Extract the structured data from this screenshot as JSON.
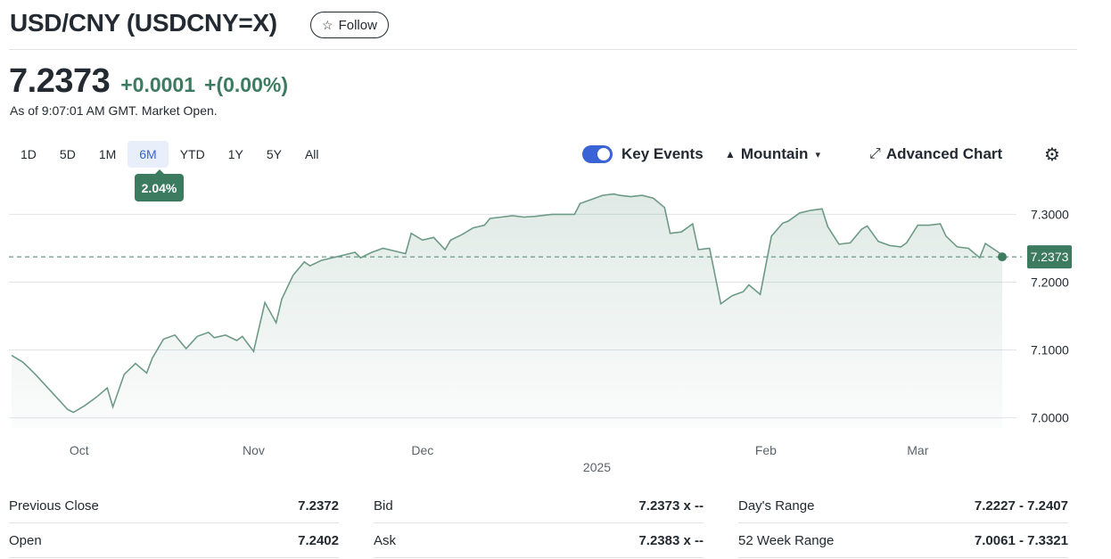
{
  "header": {
    "title": "USD/CNY (USDCNY=X)",
    "follow_label": "Follow"
  },
  "quote": {
    "price": "7.2373",
    "change": "+0.0001",
    "change_pct": "+(0.00%)",
    "as_of": "As of 9:07:01 AM GMT. Market Open."
  },
  "ranges": {
    "items": [
      "1D",
      "5D",
      "1M",
      "6M",
      "YTD",
      "1Y",
      "5Y",
      "All"
    ],
    "active": "6M",
    "badge": "2.04%"
  },
  "toolbar": {
    "key_events": "Key Events",
    "chart_type": "Mountain",
    "advanced": "Advanced Chart",
    "key_events_on": true
  },
  "colors": {
    "accent": "#3a63d6",
    "positive": "#3c7b60",
    "line": "#6d9a86",
    "grid": "#e0e4e9"
  },
  "chart_data": {
    "type": "area",
    "ylim": [
      6.985,
      7.34
    ],
    "y_ticks": [
      "7.0000",
      "7.1000",
      "7.2000",
      "7.3000"
    ],
    "y_tick_values": [
      7.0,
      7.1,
      7.2,
      7.3
    ],
    "x_labels": [
      "Oct",
      "Nov",
      "Dec",
      "Feb",
      "Mar"
    ],
    "x_label_days": [
      12,
      43,
      73,
      134,
      161
    ],
    "year_label": "2025",
    "year_label_day": 104,
    "last_price": 7.2373,
    "last_price_label": "7.2373",
    "days": [
      0,
      2,
      4,
      6,
      8,
      10,
      11,
      13,
      15,
      17,
      18,
      20,
      22,
      24,
      25,
      27,
      29,
      31,
      33,
      35,
      36,
      38,
      40,
      41,
      43,
      45,
      47,
      48,
      50,
      52,
      53,
      55,
      57,
      59,
      61,
      62,
      64,
      66,
      68,
      70,
      71,
      73,
      75,
      77,
      78,
      80,
      82,
      84,
      85,
      87,
      89,
      91,
      93,
      94,
      96,
      98,
      100,
      101,
      103,
      105,
      107,
      108,
      110,
      112,
      114,
      116,
      117,
      119,
      121,
      122,
      124,
      126,
      128,
      130,
      131,
      133,
      135,
      137,
      138,
      140,
      142,
      144,
      145,
      147,
      149,
      151,
      152,
      154,
      156,
      158,
      159,
      161,
      163,
      165,
      166,
      168,
      170,
      172,
      173,
      175,
      176
    ],
    "values": [
      7.092,
      7.082,
      7.066,
      7.048,
      7.03,
      7.012,
      7.008,
      7.018,
      7.03,
      7.044,
      7.016,
      7.064,
      7.08,
      7.066,
      7.088,
      7.116,
      7.122,
      7.102,
      7.12,
      7.126,
      7.118,
      7.122,
      7.114,
      7.12,
      7.098,
      7.17,
      7.14,
      7.175,
      7.21,
      7.23,
      7.224,
      7.232,
      7.236,
      7.24,
      7.244,
      7.236,
      7.244,
      7.25,
      7.246,
      7.242,
      7.272,
      7.262,
      7.266,
      7.248,
      7.262,
      7.27,
      7.28,
      7.284,
      7.294,
      7.296,
      7.298,
      7.296,
      7.297,
      7.298,
      7.3,
      7.3,
      7.3,
      7.316,
      7.322,
      7.328,
      7.33,
      7.328,
      7.326,
      7.328,
      7.324,
      7.31,
      7.272,
      7.274,
      7.286,
      7.248,
      7.25,
      7.168,
      7.18,
      7.186,
      7.196,
      7.182,
      7.268,
      7.287,
      7.29,
      7.302,
      7.306,
      7.308,
      7.282,
      7.256,
      7.258,
      7.278,
      7.283,
      7.26,
      7.254,
      7.252,
      7.258,
      7.284,
      7.284,
      7.286,
      7.268,
      7.252,
      7.25,
      7.236,
      7.257,
      7.246,
      7.24
    ]
  },
  "stats": {
    "col1": [
      {
        "label": "Previous Close",
        "value": "7.2372"
      },
      {
        "label": "Open",
        "value": "7.2402"
      }
    ],
    "col2": [
      {
        "label": "Bid",
        "value": "7.2373 x --"
      },
      {
        "label": "Ask",
        "value": "7.2383 x --"
      }
    ],
    "col3": [
      {
        "label": "Day's Range",
        "value": "7.2227 - 7.2407"
      },
      {
        "label": "52 Week Range",
        "value": "7.0061 - 7.3321"
      }
    ]
  }
}
